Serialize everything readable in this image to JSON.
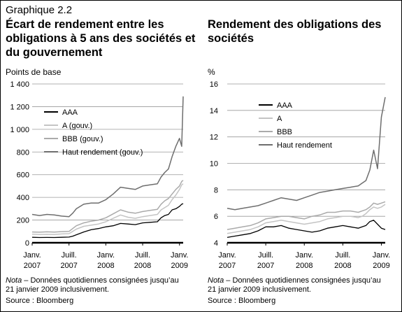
{
  "figure_label": "Graphique 2.2",
  "colors": {
    "AAA": "#000000",
    "A": "#c4c4c4",
    "BBB": "#aaaaaa",
    "HY": "#6e6e6e",
    "grid": "#999999"
  },
  "chart_data": [
    {
      "type": "line",
      "title": "Écart de rendement entre les obligations à 5 ans des sociétés et du gouvernement",
      "unit_label": "Points de base",
      "ylim": [
        0,
        1400
      ],
      "yticks": [
        0,
        200,
        400,
        600,
        800,
        1000,
        1200,
        1400
      ],
      "ytick_labels": [
        "0",
        "200",
        "400",
        "600",
        "800",
        "1 000",
        "1 200",
        "1 400"
      ],
      "xlim": [
        2007.0,
        2009.05
      ],
      "xticks": [
        2007.0,
        2007.5,
        2008.0,
        2008.5,
        2009.0
      ],
      "xtick_labels": [
        [
          "Janv.",
          "2007"
        ],
        [
          "Juill.",
          "2007"
        ],
        [
          "Janv.",
          "2008"
        ],
        [
          "Juill.",
          "2008"
        ],
        [
          "Janv.",
          "2009"
        ]
      ],
      "x": [
        2007.0,
        2007.1,
        2007.2,
        2007.3,
        2007.4,
        2007.5,
        2007.55,
        2007.6,
        2007.7,
        2007.8,
        2007.9,
        2008.0,
        2008.1,
        2008.2,
        2008.3,
        2008.4,
        2008.5,
        2008.6,
        2008.7,
        2008.75,
        2008.8,
        2008.85,
        2008.9,
        2008.95,
        2009.0,
        2009.03,
        2009.05
      ],
      "series": [
        {
          "name": "AAA",
          "values": [
            48,
            46,
            47,
            46,
            48,
            50,
            58,
            70,
            95,
            115,
            125,
            140,
            150,
            170,
            165,
            160,
            175,
            180,
            185,
            220,
            240,
            250,
            290,
            300,
            320,
            340,
            345
          ]
        },
        {
          "name": "A (gouv.)",
          "values": [
            75,
            72,
            74,
            72,
            78,
            80,
            100,
            120,
            145,
            155,
            165,
            185,
            215,
            245,
            225,
            215,
            230,
            240,
            250,
            290,
            310,
            330,
            380,
            420,
            470,
            510,
            520
          ]
        },
        {
          "name": "BBB (gouv.)",
          "values": [
            95,
            93,
            96,
            94,
            98,
            100,
            125,
            150,
            175,
            190,
            200,
            220,
            255,
            290,
            270,
            260,
            275,
            285,
            295,
            340,
            370,
            390,
            430,
            470,
            500,
            540,
            550
          ]
        },
        {
          "name": "Haut rendement (gouv.)",
          "values": [
            250,
            240,
            250,
            245,
            235,
            230,
            260,
            300,
            340,
            350,
            350,
            380,
            430,
            490,
            480,
            470,
            500,
            510,
            520,
            580,
            620,
            650,
            760,
            850,
            920,
            850,
            1290
          ]
        }
      ]
    },
    {
      "type": "line",
      "title": "Rendement des obligations des sociétés",
      "unit_label": "%",
      "ylim": [
        4,
        16
      ],
      "yticks": [
        4,
        6,
        8,
        10,
        12,
        14,
        16
      ],
      "ytick_labels": [
        "4",
        "6",
        "8",
        "10",
        "12",
        "14",
        "16"
      ],
      "xlim": [
        2007.0,
        2009.05
      ],
      "xticks": [
        2007.0,
        2007.5,
        2008.0,
        2008.5,
        2009.0
      ],
      "xtick_labels": [
        [
          "Janv.",
          "2007"
        ],
        [
          "Juill.",
          "2007"
        ],
        [
          "Janv.",
          "2008"
        ],
        [
          "Juill.",
          "2008"
        ],
        [
          "Janv.",
          "2009"
        ]
      ],
      "x": [
        2007.0,
        2007.1,
        2007.2,
        2007.3,
        2007.4,
        2007.5,
        2007.6,
        2007.7,
        2007.8,
        2007.9,
        2008.0,
        2008.1,
        2008.2,
        2008.3,
        2008.4,
        2008.5,
        2008.6,
        2008.7,
        2008.75,
        2008.8,
        2008.85,
        2008.9,
        2008.95,
        2009.0,
        2009.05
      ],
      "series": [
        {
          "name": "AAA",
          "values": [
            4.4,
            4.5,
            4.6,
            4.7,
            4.9,
            5.2,
            5.2,
            5.3,
            5.1,
            5.0,
            4.9,
            4.8,
            4.9,
            5.1,
            5.2,
            5.3,
            5.2,
            5.1,
            5.2,
            5.3,
            5.6,
            5.7,
            5.4,
            5.1,
            5.0
          ]
        },
        {
          "name": "A",
          "values": [
            4.7,
            4.8,
            4.9,
            5.0,
            5.2,
            5.5,
            5.6,
            5.7,
            5.6,
            5.5,
            5.4,
            5.5,
            5.6,
            5.8,
            5.9,
            6.0,
            6.0,
            5.9,
            6.0,
            6.2,
            6.5,
            6.7,
            6.6,
            6.7,
            6.9
          ]
        },
        {
          "name": "BBB",
          "values": [
            5.0,
            5.1,
            5.2,
            5.3,
            5.5,
            5.8,
            5.9,
            6.0,
            6.0,
            5.9,
            5.8,
            6.0,
            6.1,
            6.3,
            6.3,
            6.4,
            6.4,
            6.3,
            6.4,
            6.5,
            6.7,
            7.0,
            6.9,
            7.0,
            7.1
          ]
        },
        {
          "name": "Haut rendement",
          "values": [
            6.6,
            6.5,
            6.6,
            6.7,
            6.8,
            7.0,
            7.2,
            7.4,
            7.3,
            7.2,
            7.4,
            7.6,
            7.8,
            7.9,
            8.0,
            8.1,
            8.2,
            8.3,
            8.5,
            8.7,
            9.5,
            11.0,
            9.6,
            13.5,
            15.0
          ]
        }
      ]
    }
  ],
  "notes": {
    "note_label": "Nota",
    "note_text": " – Données quotidiennes consignées jusqu’au",
    "note_line2": "21 janvier 2009 inclusivement.",
    "source": "Source : Bloomberg"
  }
}
